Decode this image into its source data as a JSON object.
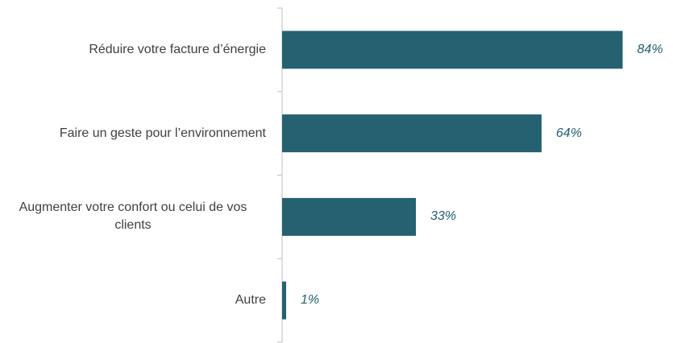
{
  "chart_data": {
    "type": "barh",
    "categories": [
      "Réduire votre facture d’énergie",
      "Faire un geste pour l’environnement",
      "Augmenter votre confort ou celui de vos clients",
      "Autre"
    ],
    "values": [
      84,
      64,
      33,
      1
    ],
    "value_labels": [
      "84%",
      "64%",
      "33%",
      "1%"
    ],
    "color": "#256170",
    "xlim": [
      0,
      100
    ]
  }
}
